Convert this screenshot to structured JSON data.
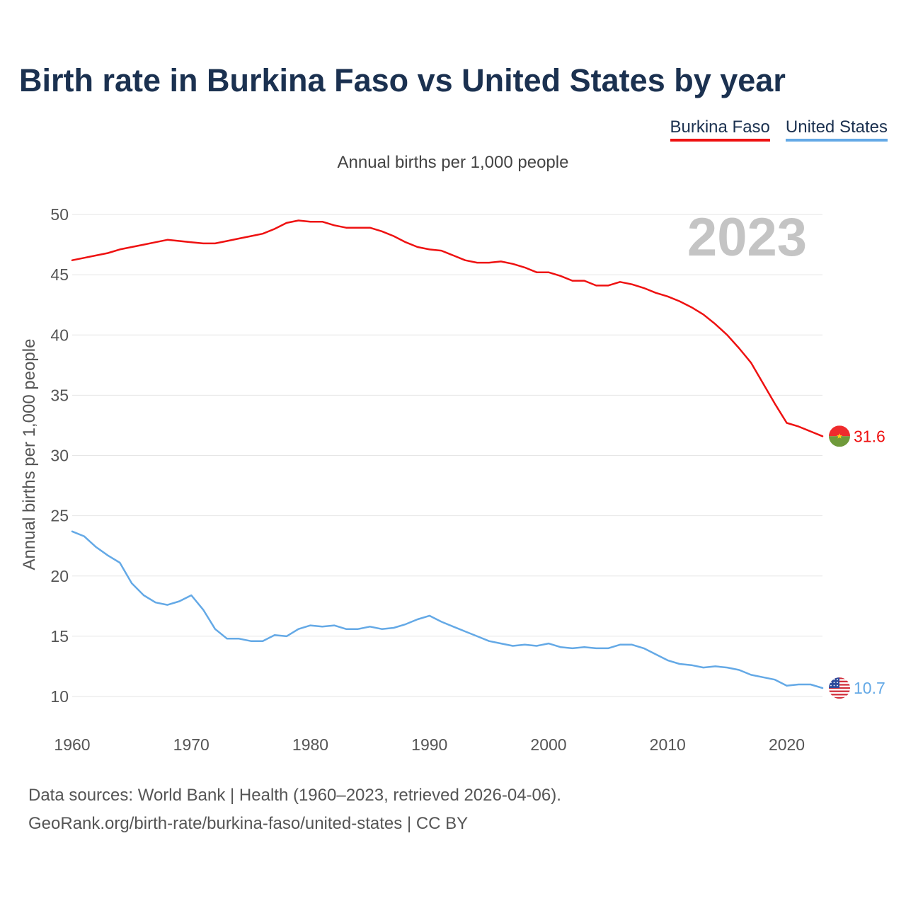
{
  "chart_data": {
    "type": "line",
    "title": "Birth rate in Burkina Faso vs United States by year",
    "subtitle": "Annual births per 1,000 people",
    "xlabel": "",
    "ylabel": "Annual births per 1,000 people",
    "xlim": [
      1960,
      2023
    ],
    "ylim": [
      10,
      50
    ],
    "x_ticks": [
      "1960",
      "1970",
      "1980",
      "1990",
      "2000",
      "2010",
      "2020"
    ],
    "y_ticks": [
      "10",
      "15",
      "20",
      "25",
      "30",
      "35",
      "40",
      "45",
      "50"
    ],
    "grid": true,
    "legend_position": "top-right",
    "year_watermark": "2023",
    "x": [
      1960,
      1961,
      1962,
      1963,
      1964,
      1965,
      1966,
      1967,
      1968,
      1969,
      1970,
      1971,
      1972,
      1973,
      1974,
      1975,
      1976,
      1977,
      1978,
      1979,
      1980,
      1981,
      1982,
      1983,
      1984,
      1985,
      1986,
      1987,
      1988,
      1989,
      1990,
      1991,
      1992,
      1993,
      1994,
      1995,
      1996,
      1997,
      1998,
      1999,
      2000,
      2001,
      2002,
      2003,
      2004,
      2005,
      2006,
      2007,
      2008,
      2009,
      2010,
      2011,
      2012,
      2013,
      2014,
      2015,
      2016,
      2017,
      2018,
      2019,
      2020,
      2021,
      2022,
      2023
    ],
    "series": [
      {
        "name": "Burkina Faso",
        "color": "#ee1111",
        "end_label": "31.6",
        "flag": "burkina-faso-flag-icon",
        "values": [
          46.2,
          46.4,
          46.6,
          46.8,
          47.1,
          47.3,
          47.5,
          47.7,
          47.9,
          47.8,
          47.7,
          47.6,
          47.6,
          47.8,
          48.0,
          48.2,
          48.4,
          48.8,
          49.3,
          49.5,
          49.4,
          49.4,
          49.1,
          48.9,
          48.9,
          48.9,
          48.6,
          48.2,
          47.7,
          47.3,
          47.1,
          47.0,
          46.6,
          46.2,
          46.0,
          46.0,
          46.1,
          45.9,
          45.6,
          45.2,
          45.2,
          44.9,
          44.5,
          44.5,
          44.1,
          44.1,
          44.4,
          44.2,
          43.9,
          43.5,
          43.2,
          42.8,
          42.3,
          41.7,
          40.9,
          40.0,
          38.9,
          37.7,
          36.0,
          34.3,
          32.7,
          32.4,
          32.0,
          31.6
        ]
      },
      {
        "name": "United States",
        "color": "#64a9e6",
        "end_label": "10.7",
        "flag": "united-states-flag-icon",
        "values": [
          23.7,
          23.3,
          22.4,
          21.7,
          21.1,
          19.4,
          18.4,
          17.8,
          17.6,
          17.9,
          18.4,
          17.2,
          15.6,
          14.8,
          14.8,
          14.6,
          14.6,
          15.1,
          15.0,
          15.6,
          15.9,
          15.8,
          15.9,
          15.6,
          15.6,
          15.8,
          15.6,
          15.7,
          16.0,
          16.4,
          16.7,
          16.2,
          15.8,
          15.4,
          15.0,
          14.6,
          14.4,
          14.2,
          14.3,
          14.2,
          14.4,
          14.1,
          14.0,
          14.1,
          14.0,
          14.0,
          14.3,
          14.3,
          14.0,
          13.5,
          13.0,
          12.7,
          12.6,
          12.4,
          12.5,
          12.4,
          12.2,
          11.8,
          11.6,
          11.4,
          10.9,
          11.0,
          11.0,
          10.7
        ]
      }
    ]
  },
  "footer": {
    "line1": "Data sources: World Bank | Health (1960–2023, retrieved 2026-04-06).",
    "line2": "GeoRank.org/birth-rate/burkina-faso/united-states | CC BY"
  }
}
